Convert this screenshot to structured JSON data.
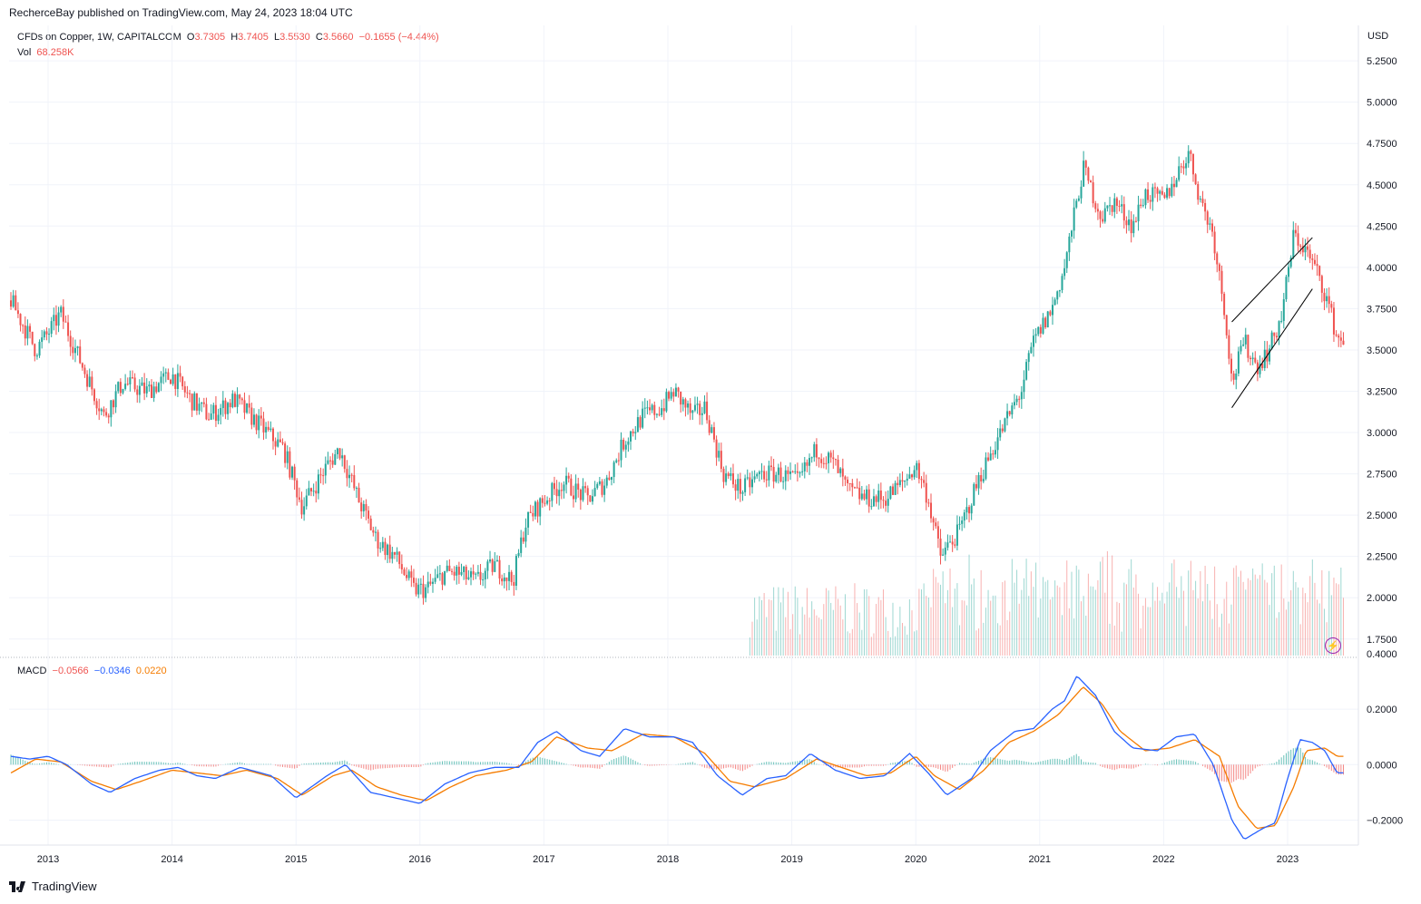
{
  "header": {
    "published": "RecherceBay published on TradingView.com, May 24, 2023 18:04 UTC"
  },
  "legend": {
    "symbol": "CFDs on Copper, 1W, CAPITALCOM",
    "o_label": "O",
    "o": "3.7305",
    "h_label": "H",
    "h": "3.7405",
    "l_label": "L",
    "l": "3.5530",
    "c_label": "C",
    "c": "3.5660",
    "chg": "−0.1655 (−4.44%)",
    "vol_label": "Vol",
    "vol": "68.258K"
  },
  "macd_legend": {
    "label": "MACD",
    "hist": "−0.0566",
    "macd": "−0.0346",
    "signal": "0.0220"
  },
  "currency": "USD",
  "brand": {
    "name": "TradingView"
  },
  "colors": {
    "up": "#26a69a",
    "down": "#ef5350",
    "macd": "#2962ff",
    "signal": "#f57c00",
    "channel": "#000000"
  },
  "chart_data": [
    {
      "type": "candlestick",
      "title": "CFDs on Copper, 1W, CAPITALCOM",
      "ylim": [
        1.65,
        5.3
      ],
      "y_ticks": [
        "5.2500",
        "5.0000",
        "4.7500",
        "4.5000",
        "4.2500",
        "4.0000",
        "3.7500",
        "3.5000",
        "3.2500",
        "3.0000",
        "2.7500",
        "2.5000",
        "2.2500",
        "2.0000",
        "1.7500"
      ],
      "x_ticks": [
        "2013",
        "2014",
        "2015",
        "2016",
        "2017",
        "2018",
        "2019",
        "2020",
        "2021",
        "2022",
        "2023"
      ],
      "x_range": [
        2012.7,
        2023.45
      ],
      "price_path": [
        [
          2012.7,
          3.8
        ],
        [
          2012.9,
          3.5
        ],
        [
          2013.0,
          3.6
        ],
        [
          2013.1,
          3.72
        ],
        [
          2013.25,
          3.45
        ],
        [
          2013.45,
          3.1
        ],
        [
          2013.6,
          3.3
        ],
        [
          2013.8,
          3.25
        ],
        [
          2014.0,
          3.35
        ],
        [
          2014.15,
          3.2
        ],
        [
          2014.3,
          3.1
        ],
        [
          2014.5,
          3.2
        ],
        [
          2014.7,
          3.05
        ],
        [
          2014.9,
          2.9
        ],
        [
          2015.05,
          2.55
        ],
        [
          2015.25,
          2.8
        ],
        [
          2015.35,
          2.9
        ],
        [
          2015.5,
          2.6
        ],
        [
          2015.65,
          2.35
        ],
        [
          2015.8,
          2.25
        ],
        [
          2015.95,
          2.05
        ],
        [
          2016.05,
          2.05
        ],
        [
          2016.2,
          2.15
        ],
        [
          2016.3,
          2.15
        ],
        [
          2016.45,
          2.1
        ],
        [
          2016.6,
          2.2
        ],
        [
          2016.75,
          2.1
        ],
        [
          2016.85,
          2.45
        ],
        [
          2016.95,
          2.55
        ],
        [
          2017.15,
          2.7
        ],
        [
          2017.35,
          2.6
        ],
        [
          2017.5,
          2.7
        ],
        [
          2017.65,
          2.95
        ],
        [
          2017.8,
          3.1
        ],
        [
          2017.95,
          3.15
        ],
        [
          2018.05,
          3.25
        ],
        [
          2018.2,
          3.1
        ],
        [
          2018.3,
          3.15
        ],
        [
          2018.45,
          2.75
        ],
        [
          2018.6,
          2.65
        ],
        [
          2018.75,
          2.75
        ],
        [
          2018.9,
          2.75
        ],
        [
          2019.05,
          2.7
        ],
        [
          2019.2,
          2.9
        ],
        [
          2019.35,
          2.8
        ],
        [
          2019.45,
          2.65
        ],
        [
          2019.6,
          2.6
        ],
        [
          2019.75,
          2.6
        ],
        [
          2019.9,
          2.7
        ],
        [
          2020.0,
          2.8
        ],
        [
          2020.1,
          2.6
        ],
        [
          2020.2,
          2.25
        ],
        [
          2020.35,
          2.4
        ],
        [
          2020.5,
          2.7
        ],
        [
          2020.65,
          2.95
        ],
        [
          2020.85,
          3.25
        ],
        [
          2020.95,
          3.55
        ],
        [
          2021.1,
          3.75
        ],
        [
          2021.2,
          4.0
        ],
        [
          2021.35,
          4.6
        ],
        [
          2021.5,
          4.3
        ],
        [
          2021.6,
          4.4
        ],
        [
          2021.75,
          4.25
        ],
        [
          2021.85,
          4.45
        ],
        [
          2022.0,
          4.4
        ],
        [
          2022.1,
          4.55
        ],
        [
          2022.2,
          4.7
        ],
        [
          2022.3,
          4.4
        ],
        [
          2022.4,
          4.2
        ],
        [
          2022.5,
          3.7
        ],
        [
          2022.55,
          3.3
        ],
        [
          2022.65,
          3.55
        ],
        [
          2022.75,
          3.4
        ],
        [
          2022.85,
          3.5
        ],
        [
          2022.95,
          3.7
        ],
        [
          2023.05,
          4.2
        ],
        [
          2023.15,
          4.1
        ],
        [
          2023.25,
          3.95
        ],
        [
          2023.32,
          3.8
        ],
        [
          2023.4,
          3.57
        ]
      ],
      "volume_start": 2018.65,
      "channel": [
        {
          "x": [
            2022.55,
            2023.2
          ],
          "y": [
            3.15,
            3.87
          ]
        },
        {
          "x": [
            2022.55,
            2023.2
          ],
          "y": [
            3.67,
            4.18
          ]
        }
      ]
    },
    {
      "type": "line",
      "title": "MACD",
      "ylim": [
        -0.29,
        0.38
      ],
      "y_ticks": [
        "0.4000",
        "0.2000",
        "0.0000",
        "−0.2000"
      ],
      "series": [
        {
          "name": "MACD",
          "path": [
            [
              2012.7,
              0.03
            ],
            [
              2012.85,
              0.02
            ],
            [
              2013.0,
              0.03
            ],
            [
              2013.15,
              0.0
            ],
            [
              2013.35,
              -0.07
            ],
            [
              2013.5,
              -0.1
            ],
            [
              2013.7,
              -0.05
            ],
            [
              2013.9,
              -0.02
            ],
            [
              2014.05,
              -0.01
            ],
            [
              2014.2,
              -0.04
            ],
            [
              2014.35,
              -0.05
            ],
            [
              2014.55,
              -0.01
            ],
            [
              2014.8,
              -0.04
            ],
            [
              2015.0,
              -0.12
            ],
            [
              2015.25,
              -0.04
            ],
            [
              2015.4,
              0.0
            ],
            [
              2015.6,
              -0.1
            ],
            [
              2015.8,
              -0.12
            ],
            [
              2016.0,
              -0.14
            ],
            [
              2016.2,
              -0.07
            ],
            [
              2016.4,
              -0.03
            ],
            [
              2016.6,
              -0.01
            ],
            [
              2016.8,
              -0.01
            ],
            [
              2016.95,
              0.08
            ],
            [
              2017.1,
              0.12
            ],
            [
              2017.3,
              0.05
            ],
            [
              2017.45,
              0.03
            ],
            [
              2017.65,
              0.13
            ],
            [
              2017.85,
              0.1
            ],
            [
              2018.05,
              0.1
            ],
            [
              2018.2,
              0.08
            ],
            [
              2018.4,
              -0.04
            ],
            [
              2018.6,
              -0.11
            ],
            [
              2018.8,
              -0.05
            ],
            [
              2018.95,
              -0.04
            ],
            [
              2019.15,
              0.04
            ],
            [
              2019.35,
              -0.02
            ],
            [
              2019.55,
              -0.05
            ],
            [
              2019.75,
              -0.04
            ],
            [
              2019.95,
              0.04
            ],
            [
              2020.1,
              -0.03
            ],
            [
              2020.25,
              -0.11
            ],
            [
              2020.45,
              -0.05
            ],
            [
              2020.6,
              0.05
            ],
            [
              2020.8,
              0.12
            ],
            [
              2020.95,
              0.13
            ],
            [
              2021.1,
              0.2
            ],
            [
              2021.2,
              0.23
            ],
            [
              2021.3,
              0.32
            ],
            [
              2021.45,
              0.25
            ],
            [
              2021.6,
              0.12
            ],
            [
              2021.75,
              0.06
            ],
            [
              2021.95,
              0.05
            ],
            [
              2022.1,
              0.1
            ],
            [
              2022.25,
              0.11
            ],
            [
              2022.4,
              0.0
            ],
            [
              2022.55,
              -0.2
            ],
            [
              2022.65,
              -0.27
            ],
            [
              2022.8,
              -0.23
            ],
            [
              2022.9,
              -0.21
            ],
            [
              2023.0,
              -0.05
            ],
            [
              2023.1,
              0.09
            ],
            [
              2023.2,
              0.08
            ],
            [
              2023.3,
              0.05
            ],
            [
              2023.4,
              -0.03
            ]
          ]
        },
        {
          "name": "Signal",
          "path": [
            [
              2012.7,
              -0.03
            ],
            [
              2012.9,
              0.02
            ],
            [
              2013.1,
              0.01
            ],
            [
              2013.35,
              -0.06
            ],
            [
              2013.55,
              -0.09
            ],
            [
              2013.75,
              -0.06
            ],
            [
              2014.0,
              -0.02
            ],
            [
              2014.2,
              -0.03
            ],
            [
              2014.4,
              -0.04
            ],
            [
              2014.6,
              -0.02
            ],
            [
              2014.85,
              -0.05
            ],
            [
              2015.05,
              -0.11
            ],
            [
              2015.3,
              -0.04
            ],
            [
              2015.45,
              -0.02
            ],
            [
              2015.65,
              -0.08
            ],
            [
              2015.85,
              -0.11
            ],
            [
              2016.05,
              -0.13
            ],
            [
              2016.25,
              -0.08
            ],
            [
              2016.45,
              -0.04
            ],
            [
              2016.7,
              -0.02
            ],
            [
              2016.9,
              0.01
            ],
            [
              2017.1,
              0.1
            ],
            [
              2017.35,
              0.06
            ],
            [
              2017.55,
              0.05
            ],
            [
              2017.8,
              0.11
            ],
            [
              2018.05,
              0.1
            ],
            [
              2018.3,
              0.04
            ],
            [
              2018.5,
              -0.06
            ],
            [
              2018.7,
              -0.08
            ],
            [
              2018.95,
              -0.05
            ],
            [
              2019.2,
              0.02
            ],
            [
              2019.4,
              -0.01
            ],
            [
              2019.6,
              -0.04
            ],
            [
              2019.8,
              -0.03
            ],
            [
              2020.0,
              0.03
            ],
            [
              2020.15,
              -0.04
            ],
            [
              2020.35,
              -0.09
            ],
            [
              2020.55,
              -0.02
            ],
            [
              2020.75,
              0.08
            ],
            [
              2020.95,
              0.12
            ],
            [
              2021.15,
              0.18
            ],
            [
              2021.35,
              0.28
            ],
            [
              2021.5,
              0.22
            ],
            [
              2021.65,
              0.12
            ],
            [
              2021.85,
              0.05
            ],
            [
              2022.05,
              0.06
            ],
            [
              2022.25,
              0.09
            ],
            [
              2022.45,
              0.03
            ],
            [
              2022.6,
              -0.15
            ],
            [
              2022.75,
              -0.23
            ],
            [
              2022.9,
              -0.22
            ],
            [
              2023.05,
              -0.08
            ],
            [
              2023.15,
              0.05
            ],
            [
              2023.3,
              0.06
            ],
            [
              2023.4,
              0.03
            ]
          ]
        }
      ]
    }
  ]
}
